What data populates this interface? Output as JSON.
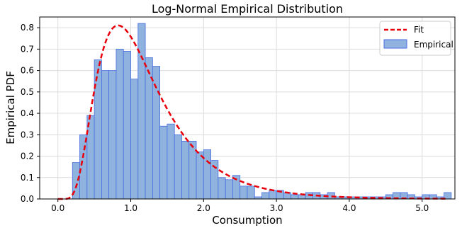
{
  "chart_data": {
    "type": "bar",
    "title": "Log-Normal Empirical Distribution",
    "xlabel": "Consumption",
    "ylabel": "Empirical PDF",
    "xlim": [
      -0.25,
      5.45
    ],
    "ylim": [
      0,
      0.85
    ],
    "xticks": [
      0.0,
      1.0,
      2.0,
      3.0,
      4.0,
      5.0
    ],
    "xtick_labels": [
      "0.0",
      "1.0",
      "2.0",
      "3.0",
      "4.0",
      "5.0"
    ],
    "yticks": [
      0.0,
      0.1,
      0.2,
      0.3,
      0.4,
      0.5,
      0.6,
      0.7,
      0.8
    ],
    "ytick_labels": [
      "0.0",
      "0.1",
      "0.2",
      "0.3",
      "0.4",
      "0.5",
      "0.6",
      "0.7",
      "0.8"
    ],
    "grid": true,
    "legend_position": "top-right",
    "colors": {
      "bar_fill": "#8fb3de",
      "bar_edge": "#4a6ee0",
      "fit_line": "#e8000b"
    },
    "histogram": {
      "name": "Empirical",
      "bin_width": 0.1,
      "bin_starts": [
        0.2,
        0.3,
        0.4,
        0.5,
        0.6,
        0.7,
        0.8,
        0.9,
        1.0,
        1.1,
        1.2,
        1.3,
        1.4,
        1.5,
        1.6,
        1.7,
        1.8,
        1.9,
        2.0,
        2.1,
        2.2,
        2.3,
        2.4,
        2.5,
        2.6,
        2.7,
        2.8,
        2.9,
        3.0,
        3.1,
        3.2,
        3.3,
        3.4,
        3.5,
        3.6,
        3.7,
        3.8,
        3.9,
        4.0,
        4.1,
        4.2,
        4.3,
        4.4,
        4.5,
        4.6,
        4.7,
        4.8,
        4.9,
        5.0,
        5.1,
        5.2,
        5.3
      ],
      "values": [
        0.17,
        0.3,
        0.39,
        0.65,
        0.6,
        0.6,
        0.7,
        0.69,
        0.56,
        0.82,
        0.66,
        0.62,
        0.34,
        0.35,
        0.3,
        0.27,
        0.27,
        0.22,
        0.23,
        0.18,
        0.1,
        0.09,
        0.11,
        0.06,
        0.06,
        0.01,
        0.03,
        0.04,
        0.04,
        0.03,
        0.02,
        0.02,
        0.03,
        0.03,
        0.02,
        0.03,
        0.01,
        0.01,
        0.01,
        0.01,
        0.01,
        0.01,
        0.01,
        0.02,
        0.03,
        0.03,
        0.02,
        0.01,
        0.02,
        0.02,
        0.01,
        0.03
      ]
    },
    "fit": {
      "name": "Fit",
      "distribution": "lognormal",
      "mu": 0.08,
      "sigma": 0.52,
      "x_range": [
        0.0,
        5.35
      ]
    }
  }
}
